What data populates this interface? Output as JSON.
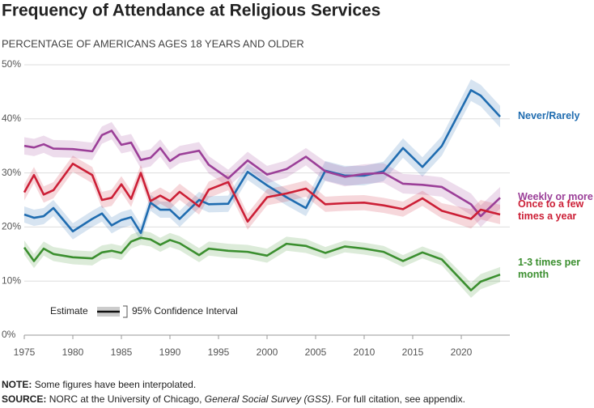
{
  "chart_data": {
    "type": "line",
    "title": "Frequency of Attendance at Religious Services",
    "subtitle": "PERCENTAGE OF AMERICANS AGES 18 YEARS AND OLDER",
    "x": [
      1975,
      1976,
      1977,
      1978,
      1980,
      1982,
      1983,
      1984,
      1985,
      1986,
      1987,
      1988,
      1989,
      1990,
      1991,
      1993,
      1994,
      1996,
      1998,
      2000,
      2002,
      2004,
      2006,
      2008,
      2010,
      2012,
      2014,
      2016,
      2018,
      2021,
      2022,
      2024
    ],
    "xlim": [
      1975,
      2025
    ],
    "xticks": [
      1975,
      1980,
      1985,
      1990,
      1995,
      2000,
      2005,
      2010,
      2015,
      2020
    ],
    "ylim": [
      0,
      50
    ],
    "yticks": [
      {
        "value": 0,
        "label": "0%"
      },
      {
        "value": 10,
        "label": "10%"
      },
      {
        "value": 20,
        "label": "20%"
      },
      {
        "value": 30,
        "label": "30%"
      },
      {
        "value": 40,
        "label": "40%"
      },
      {
        "value": 50,
        "label": "50%"
      }
    ],
    "grid": true,
    "series": [
      {
        "name": "Never/Rarely",
        "color": "#1f6cb0",
        "values": [
          22.3,
          21.7,
          22,
          23.5,
          19.2,
          21.5,
          22.5,
          20.3,
          21.3,
          21.8,
          18.9,
          24.5,
          23.2,
          23.2,
          21.5,
          25,
          24.2,
          24.3,
          30.2,
          27.7,
          25.5,
          23.5,
          30.4,
          29.5,
          29.5,
          30.3,
          34.6,
          31.1,
          35,
          45.3,
          44.3,
          40.4
        ],
        "errors": [
          1.5,
          1.5,
          1.5,
          1.5,
          1.5,
          1.5,
          1.5,
          1.5,
          1.5,
          1.5,
          1.5,
          1.5,
          1.5,
          1.5,
          1.5,
          1.5,
          1.5,
          1.5,
          1.5,
          1.5,
          1.5,
          1.5,
          1.8,
          1.8,
          1.8,
          1.8,
          1.8,
          1.8,
          1.8,
          2,
          2,
          2
        ]
      },
      {
        "name": "Weekly or more",
        "color": "#9b3f98",
        "values": [
          35,
          34.7,
          35.3,
          34.5,
          34.4,
          34,
          37,
          37.8,
          35.2,
          35.6,
          32.4,
          32.8,
          34.6,
          32.2,
          33.4,
          34.1,
          31.5,
          29,
          32.3,
          29.7,
          30.7,
          33,
          30.3,
          29.3,
          29.8,
          30,
          28,
          27.8,
          27.4,
          24.2,
          22,
          25.4
        ],
        "errors": [
          1.6,
          1.6,
          1.6,
          1.6,
          1.6,
          1.6,
          1.6,
          1.6,
          1.6,
          1.6,
          1.6,
          1.6,
          1.6,
          1.6,
          1.6,
          1.6,
          1.6,
          1.6,
          1.6,
          1.6,
          1.6,
          1.6,
          1.8,
          1.8,
          1.8,
          1.8,
          1.8,
          1.8,
          1.8,
          2,
          2,
          2
        ]
      },
      {
        "name": "Once to a few times a year",
        "color": "#cc1f36",
        "values": [
          26.4,
          29.6,
          26,
          26.8,
          31.7,
          29.6,
          25,
          25.4,
          27.9,
          25.2,
          30,
          24.8,
          25.8,
          24.8,
          26.5,
          23.8,
          26.9,
          28.3,
          21,
          25.5,
          26.2,
          27.1,
          24.2,
          24.4,
          24.5,
          24,
          23.3,
          25.3,
          23,
          21.5,
          23.2,
          22.3
        ],
        "errors": [
          1.5,
          1.5,
          1.5,
          1.5,
          1.5,
          1.5,
          1.5,
          1.5,
          1.5,
          1.5,
          1.5,
          1.5,
          1.5,
          1.5,
          1.5,
          1.5,
          1.5,
          1.5,
          1.5,
          1.5,
          1.5,
          1.5,
          1.4,
          1.4,
          1.4,
          1.4,
          1.4,
          1.4,
          1.4,
          1.8,
          1.8,
          1.8
        ]
      },
      {
        "name": "1-3 times per month",
        "color": "#3b8f2f",
        "values": [
          16.2,
          13.7,
          16,
          15,
          14.4,
          14.2,
          15.3,
          15.6,
          15.2,
          17.3,
          18,
          17.7,
          16.7,
          17.6,
          17,
          14.8,
          16,
          15.6,
          15.4,
          14.7,
          16.9,
          16.5,
          15.2,
          16.4,
          16,
          15.4,
          13.7,
          15.3,
          14,
          8.3,
          9.9,
          11.2
        ],
        "errors": [
          1.3,
          1.3,
          1.3,
          1.3,
          1.3,
          1.3,
          1.3,
          1.3,
          1.3,
          1.3,
          1.3,
          1.3,
          1.3,
          1.3,
          1.3,
          1.3,
          1.3,
          1.3,
          1.3,
          1.3,
          1.3,
          1.3,
          1.1,
          1.1,
          1.1,
          1.1,
          1.1,
          1.1,
          1.1,
          1.4,
          1.4,
          1.4
        ]
      }
    ],
    "legend": {
      "estimate": "Estimate",
      "interval": "95% Confidence Interval"
    },
    "note": {
      "label": "NOTE:",
      "text": "Some figures have been interpolated."
    },
    "source": {
      "label": "SOURCE:",
      "text": "NORC at the University of Chicago, ",
      "italic": "General Social Survey (GSS)",
      "rest": ". For full citation, see appendix."
    }
  }
}
